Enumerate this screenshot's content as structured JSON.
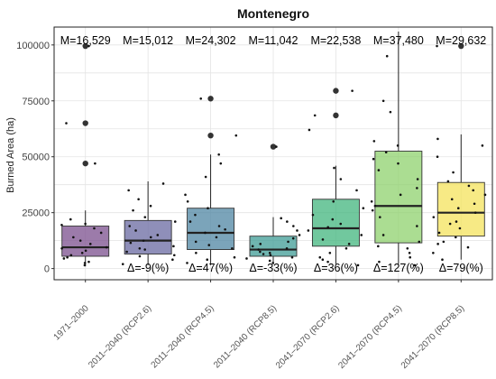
{
  "chart_data": {
    "type": "box",
    "title": "Montenegro",
    "ylabel": "Burned Area (ha)",
    "xlabel": "",
    "ylim": [
      -5000,
      108000
    ],
    "yticks": [
      0,
      25000,
      50000,
      75000,
      100000
    ],
    "ytick_labels": [
      "0",
      "25000",
      "50000",
      "75000",
      "100000"
    ],
    "grid": true,
    "categories": [
      "1971–2000",
      "2011–2040 (RCP2.6)",
      "2011–2040 (RCP4.5)",
      "2011–2040 (RCP8.5)",
      "2041–2070 (RCP2.6)",
      "2041–2070 (RCP4.5)",
      "2041–2070 (RCP8.5)"
    ],
    "mean_labels": [
      "M=16,529",
      "M=15,012",
      "M=24,302",
      "M=11,042",
      "M=22,538",
      "M=37,480",
      "M=29,632"
    ],
    "delta_labels": [
      "",
      "Δ=-9(%)",
      "Δ=47(%)",
      "Δ=-33(%)",
      "Δ=36(%)",
      "Δ=127(%)",
      "Δ=79(%)"
    ],
    "colors": [
      "#7b4f8e",
      "#6a69a1",
      "#4f86a3",
      "#3f9c96",
      "#42b57e",
      "#8fd16d",
      "#f4e35c"
    ],
    "boxes": [
      {
        "whisker_low": 1000,
        "q1": 5500,
        "median": 9500,
        "q3": 19000,
        "whisker_high": 26000,
        "outliers": [
          47000,
          65000,
          99500
        ]
      },
      {
        "whisker_low": 1500,
        "q1": 6500,
        "median": 12500,
        "q3": 21500,
        "whisker_high": 39000,
        "outliers": []
      },
      {
        "whisker_low": 1500,
        "q1": 8500,
        "median": 16000,
        "q3": 27000,
        "whisker_high": 51000,
        "outliers": [
          59500,
          76000
        ]
      },
      {
        "whisker_low": 2000,
        "q1": 5500,
        "median": 8500,
        "q3": 14500,
        "whisker_high": 23000,
        "outliers": [
          54500
        ]
      },
      {
        "whisker_low": 2000,
        "q1": 10000,
        "median": 18000,
        "q3": 31000,
        "whisker_high": 46000,
        "outliers": [
          68500,
          79500
        ]
      },
      {
        "whisker_low": 2000,
        "q1": 11500,
        "median": 28000,
        "q3": 52500,
        "whisker_high": 106000,
        "outliers": []
      },
      {
        "whisker_low": 4000,
        "q1": 14500,
        "median": 25000,
        "q3": 38500,
        "whisker_high": 60000,
        "outliers": [
          99500
        ]
      }
    ],
    "points": [
      [
        2500,
        3000,
        4500,
        6000,
        7000,
        8000,
        9000,
        9500,
        11000,
        12500,
        14000,
        16000,
        18000,
        19500,
        20000,
        22000,
        47000,
        65000,
        99500,
        1500,
        5000
      ],
      [
        2000,
        4000,
        6000,
        7500,
        8500,
        10000,
        11500,
        12500,
        14000,
        15000,
        17000,
        19000,
        21000,
        23000,
        26000,
        28000,
        31000,
        35000,
        38000,
        5500,
        9000
      ],
      [
        2500,
        5000,
        7000,
        9000,
        10500,
        12000,
        14000,
        16000,
        17500,
        19000,
        21000,
        24000,
        27000,
        30000,
        33000,
        41000,
        47000,
        51000,
        59500,
        76000,
        4000
      ],
      [
        2500,
        3500,
        5000,
        6000,
        7000,
        7500,
        8500,
        9000,
        10000,
        11000,
        12000,
        13500,
        15000,
        17000,
        19000,
        21000,
        22500,
        54500,
        4500,
        6500
      ],
      [
        3000,
        5000,
        7000,
        9000,
        11000,
        13000,
        15000,
        17000,
        18500,
        20000,
        22000,
        24000,
        27000,
        30000,
        35000,
        40000,
        45000,
        68500,
        79500,
        1500,
        4000,
        62000
      ],
      [
        3000,
        5000,
        7000,
        9000,
        12000,
        15000,
        19000,
        23000,
        26000,
        28000,
        30000,
        33000,
        36000,
        40000,
        44000,
        47000,
        49000,
        52000,
        55000,
        57000,
        70000,
        75000,
        95000,
        1500,
        10000
      ],
      [
        4000,
        7000,
        9500,
        11000,
        14000,
        16000,
        18000,
        21000,
        23000,
        25000,
        27000,
        29000,
        31000,
        33000,
        35000,
        37000,
        39000,
        43000,
        50000,
        55000,
        58000,
        99500,
        12000,
        20000
      ]
    ]
  }
}
